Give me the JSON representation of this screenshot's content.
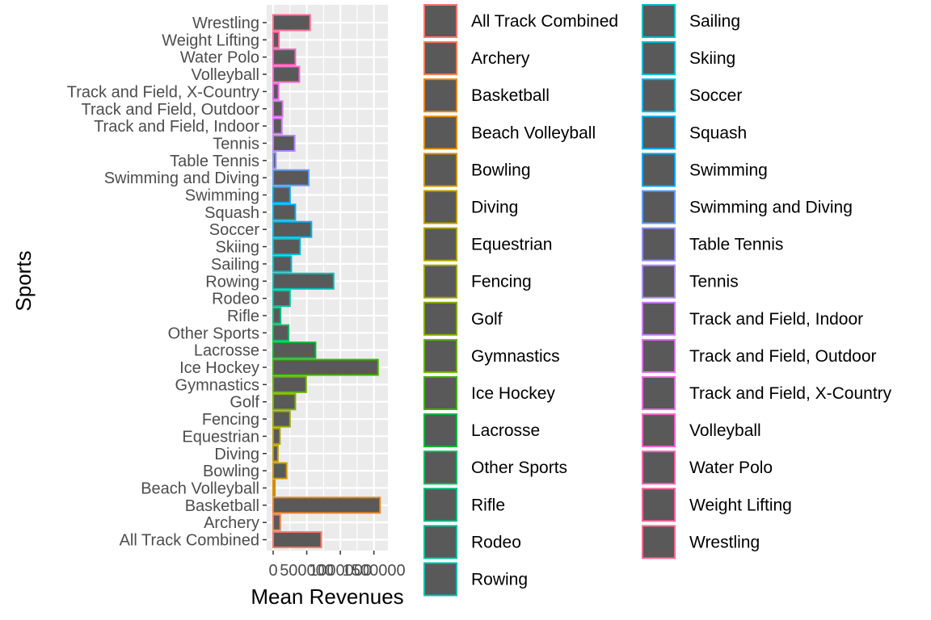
{
  "chart_data": {
    "type": "bar",
    "orientation": "horizontal",
    "xlabel": "Mean Revenues",
    "ylabel": "Sports",
    "xlim": [
      0,
      1600000
    ],
    "x_ticks": [
      0,
      500000,
      1000000,
      1500000
    ],
    "x_tick_labels": [
      "0",
      "500000",
      "1000000",
      "1500000"
    ],
    "grid": true,
    "legend_position": "right",
    "bar_fill": "#595959",
    "panel_background": "#ebebeb",
    "categories": [
      "All Track Combined",
      "Archery",
      "Basketball",
      "Beach Volleyball",
      "Bowling",
      "Diving",
      "Equestrian",
      "Fencing",
      "Golf",
      "Gymnastics",
      "Ice Hockey",
      "Lacrosse",
      "Other Sports",
      "Rifle",
      "Rodeo",
      "Rowing",
      "Sailing",
      "Skiing",
      "Soccer",
      "Squash",
      "Swimming",
      "Swimming and Diving",
      "Table Tennis",
      "Tennis",
      "Track and Field, Indoor",
      "Track and Field, Outdoor",
      "Track and Field, X-Country",
      "Volleyball",
      "Water Polo",
      "Weight Lifting",
      "Wrestling"
    ],
    "values": [
      715000,
      105000,
      1590000,
      25000,
      200000,
      70000,
      100000,
      250000,
      330000,
      490000,
      1560000,
      630000,
      230000,
      110000,
      250000,
      900000,
      270000,
      400000,
      570000,
      330000,
      250000,
      530000,
      40000,
      320000,
      130000,
      140000,
      80000,
      390000,
      330000,
      85000,
      550000
    ],
    "outline_colors": [
      "#F8766D",
      "#F17D51",
      "#E7851E",
      "#DC8D00",
      "#CF9400",
      "#BF9B00",
      "#AEA200",
      "#9AA800",
      "#83AD00",
      "#66B200",
      "#39B600",
      "#00BA38",
      "#00BD5F",
      "#00BF7D",
      "#00C097",
      "#00C0AF",
      "#00BFC4",
      "#00BCD8",
      "#00B7E9",
      "#00B0F6",
      "#00A7FF",
      "#619CFF",
      "#8F91FF",
      "#B186FF",
      "#CB7BF8",
      "#DE71EC",
      "#ED68DD",
      "#F763CB",
      "#FC61B6",
      "#FF629E",
      "#FF6C91"
    ]
  }
}
